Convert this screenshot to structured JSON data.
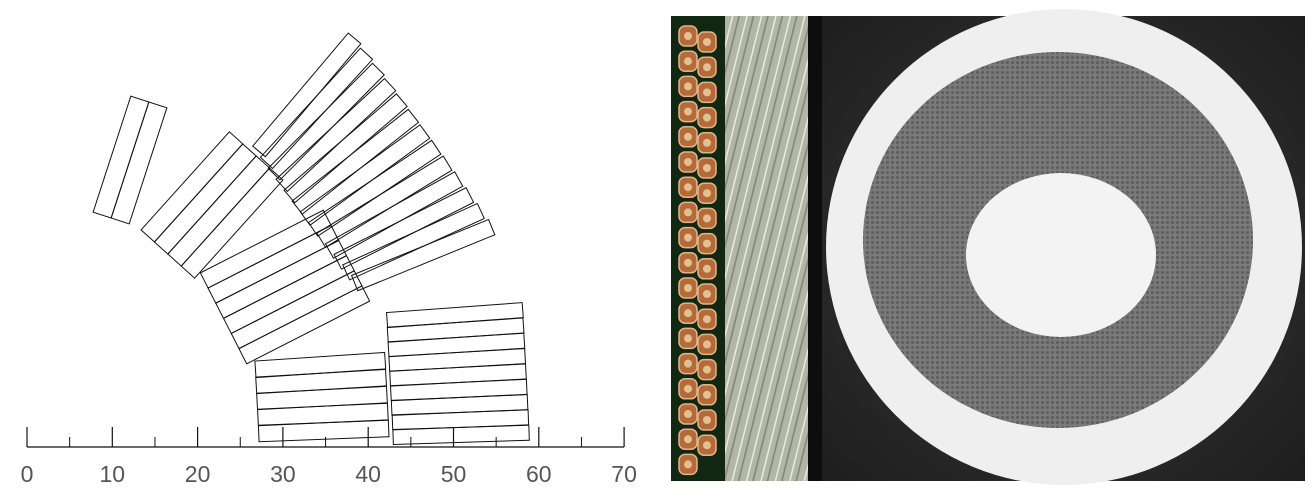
{
  "diagram": {
    "axis": {
      "ticks_major": [
        0,
        10,
        20,
        30,
        40,
        50,
        60,
        70
      ],
      "ticks_minor": [
        5,
        15,
        25,
        35,
        45,
        55,
        65
      ]
    }
  },
  "colors": {
    "background": "#ffffff",
    "line": "#111111",
    "photo_dark": "#262626",
    "photo_ring": "#eeeeee",
    "photo_annulus": "#777777",
    "strand_copper": "#b56a3a",
    "strand_bg": "#122712",
    "twist_bg": "#a8ac98"
  },
  "photos": [
    {
      "name": "cable-strand-cross-section"
    },
    {
      "name": "twisted-cable-side-view"
    },
    {
      "name": "wire-cross-section"
    }
  ]
}
